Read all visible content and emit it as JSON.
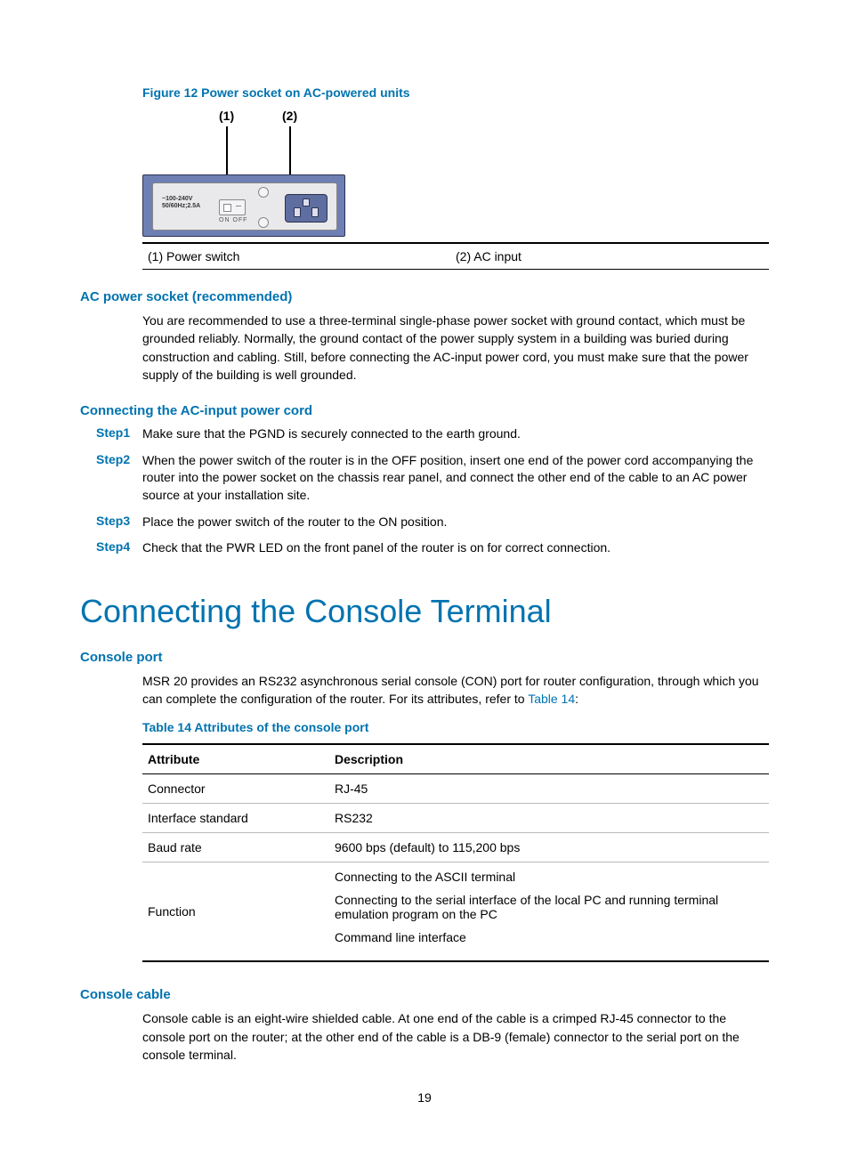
{
  "colors": {
    "accent": "#0073b0",
    "text": "#000000",
    "bg": "#ffffff",
    "panel": "#6e7fb4",
    "faceplate": "#e9e9ec"
  },
  "figure": {
    "caption": "Figure 12 Power socket on AC-powered units",
    "callout1": "(1)",
    "callout2": "(2)",
    "plate_text_line1": "~100-240V",
    "plate_text_line2": "50/60Hz;2.5A",
    "on_off": "ON    OFF",
    "legend1": "(1) Power switch",
    "legend2": "(2) AC input"
  },
  "sec_ac": {
    "heading": "AC power socket (recommended)",
    "body": "You are recommended to use a three-terminal single-phase power socket with ground contact, which must be grounded reliably. Normally, the ground contact of the power supply system in a building was buried during construction and cabling. Still, before connecting the AC-input power cord, you must make sure that the power supply of the building is well grounded."
  },
  "sec_cord": {
    "heading": "Connecting the AC-input power cord",
    "steps": [
      {
        "label": "Step1",
        "text": "Make sure that the PGND is securely connected to the earth ground."
      },
      {
        "label": "Step2",
        "text": "When the power switch of the router is in the OFF position, insert one end of the power cord accompanying the router into the power socket on the chassis rear panel, and connect the other end of the cable to an AC power source at your installation site."
      },
      {
        "label": "Step3",
        "text": "Place the power switch of the router to the ON position."
      },
      {
        "label": "Step4",
        "text": "Check that the PWR LED on the front panel of the router is on for correct connection."
      }
    ]
  },
  "h1": "Connecting the Console Terminal",
  "sec_port": {
    "heading": "Console port",
    "body_pre": "MSR 20 provides an RS232 asynchronous serial console (CON) port for router configuration, through which you can complete the configuration of the router. For its attributes, refer to ",
    "link": "Table 14",
    "body_post": ":"
  },
  "table14": {
    "caption": "Table 14 Attributes of the console port",
    "head_a": "Attribute",
    "head_b": "Description",
    "rows": [
      {
        "a": "Connector",
        "b": "RJ-45"
      },
      {
        "a": "Interface standard",
        "b": "RS232"
      },
      {
        "a": "Baud rate",
        "b": "9600 bps (default) to 115,200 bps"
      }
    ],
    "func_label": "Function",
    "func_lines": [
      "Connecting to the ASCII terminal",
      "Connecting to the serial interface of the local PC and running terminal emulation program on the PC",
      "Command line interface"
    ]
  },
  "sec_cable": {
    "heading": "Console cable",
    "body": "Console cable is an eight-wire shielded cable. At one end of the cable is a crimped RJ-45 connector to the console port on the router; at the other end of the cable is a DB-9 (female) connector to the serial port on the console terminal."
  },
  "page_number": "19"
}
